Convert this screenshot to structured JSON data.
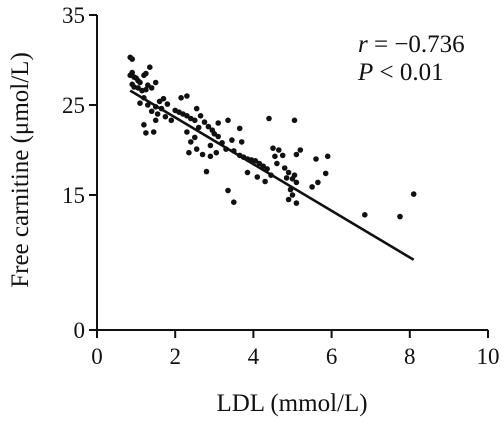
{
  "chart_data": {
    "type": "scatter",
    "xlabel": "LDL (mmol/L)",
    "ylabel": "Free carnitine (μmol/L)",
    "xlim": [
      0,
      10
    ],
    "ylim": [
      0,
      35
    ],
    "x_ticks": [
      0,
      2,
      4,
      6,
      8,
      10
    ],
    "y_ticks": [
      0,
      15,
      25,
      35
    ],
    "x_tick_labels": [
      "0",
      "2",
      "4",
      "6",
      "8",
      "10"
    ],
    "y_tick_labels": [
      "0",
      "15",
      "25",
      "35"
    ],
    "grid": false,
    "annotations": {
      "r_symbol": "r",
      "r_value": " = −0.736",
      "p_symbol": "P",
      "p_value": " < 0.01"
    },
    "trendline": {
      "x": [
        0.85,
        8.1
      ],
      "y": [
        26.6,
        7.8
      ]
    },
    "points": [
      [
        0.85,
        30.3
      ],
      [
        0.9,
        30.1
      ],
      [
        0.9,
        28.6
      ],
      [
        0.85,
        28.3
      ],
      [
        0.95,
        28.1
      ],
      [
        1.0,
        28.0
      ],
      [
        1.05,
        27.7
      ],
      [
        1.1,
        27.5
      ],
      [
        0.9,
        27.3
      ],
      [
        0.95,
        27.0
      ],
      [
        1.05,
        26.9
      ],
      [
        1.15,
        26.6
      ],
      [
        1.25,
        26.7
      ],
      [
        1.3,
        27.2
      ],
      [
        1.2,
        28.3
      ],
      [
        1.35,
        29.2
      ],
      [
        1.25,
        28.5
      ],
      [
        1.5,
        27.5
      ],
      [
        1.4,
        26.9
      ],
      [
        1.2,
        25.8
      ],
      [
        1.1,
        25.2
      ],
      [
        1.3,
        25.0
      ],
      [
        1.5,
        24.8
      ],
      [
        1.6,
        25.4
      ],
      [
        1.7,
        25.7
      ],
      [
        1.8,
        25.1
      ],
      [
        1.65,
        24.6
      ],
      [
        1.4,
        24.3
      ],
      [
        1.55,
        24.0
      ],
      [
        1.75,
        23.7
      ],
      [
        1.5,
        23.3
      ],
      [
        1.9,
        23.3
      ],
      [
        1.2,
        22.8
      ],
      [
        1.45,
        22.0
      ],
      [
        1.25,
        21.9
      ],
      [
        2.0,
        24.4
      ],
      [
        2.1,
        24.2
      ],
      [
        2.2,
        24.0
      ],
      [
        2.3,
        23.8
      ],
      [
        2.4,
        23.5
      ],
      [
        2.5,
        23.3
      ],
      [
        2.3,
        26.0
      ],
      [
        2.15,
        25.8
      ],
      [
        2.55,
        24.6
      ],
      [
        2.65,
        23.8
      ],
      [
        2.75,
        23.1
      ],
      [
        2.85,
        22.6
      ],
      [
        2.95,
        22.2
      ],
      [
        3.0,
        21.8
      ],
      [
        3.1,
        21.5
      ],
      [
        2.6,
        22.5
      ],
      [
        2.5,
        21.4
      ],
      [
        2.3,
        22.0
      ],
      [
        2.4,
        20.9
      ],
      [
        2.55,
        20.1
      ],
      [
        2.35,
        19.7
      ],
      [
        2.7,
        19.5
      ],
      [
        2.9,
        20.5
      ],
      [
        3.2,
        20.8
      ],
      [
        3.3,
        20.1
      ],
      [
        3.05,
        19.7
      ],
      [
        2.9,
        19.3
      ],
      [
        2.8,
        17.6
      ],
      [
        3.35,
        23.3
      ],
      [
        3.1,
        23.0
      ],
      [
        3.45,
        21.1
      ],
      [
        3.5,
        19.9
      ],
      [
        3.65,
        19.4
      ],
      [
        3.75,
        19.2
      ],
      [
        3.85,
        19.0
      ],
      [
        3.95,
        18.9
      ],
      [
        4.05,
        18.8
      ],
      [
        4.15,
        18.5
      ],
      [
        4.25,
        18.2
      ],
      [
        4.35,
        17.9
      ],
      [
        3.65,
        22.4
      ],
      [
        3.7,
        20.9
      ],
      [
        3.85,
        17.5
      ],
      [
        3.35,
        15.5
      ],
      [
        3.5,
        14.2
      ],
      [
        4.1,
        17.0
      ],
      [
        4.3,
        16.5
      ],
      [
        4.45,
        17.2
      ],
      [
        4.55,
        19.3
      ],
      [
        4.4,
        23.5
      ],
      [
        4.5,
        20.2
      ],
      [
        4.65,
        20.0
      ],
      [
        4.75,
        19.4
      ],
      [
        4.6,
        18.5
      ],
      [
        4.8,
        18.0
      ],
      [
        4.9,
        17.5
      ],
      [
        4.85,
        16.9
      ],
      [
        5.0,
        16.8
      ],
      [
        5.05,
        17.2
      ],
      [
        5.1,
        16.4
      ],
      [
        5.05,
        23.3
      ],
      [
        4.95,
        15.6
      ],
      [
        5.0,
        15.0
      ],
      [
        5.1,
        14.1
      ],
      [
        4.9,
        14.5
      ],
      [
        5.2,
        20.0
      ],
      [
        5.1,
        19.5
      ],
      [
        5.6,
        19.0
      ],
      [
        5.9,
        19.3
      ],
      [
        5.85,
        17.4
      ],
      [
        5.65,
        16.4
      ],
      [
        5.5,
        15.9
      ],
      [
        6.85,
        12.8
      ],
      [
        7.75,
        12.6
      ],
      [
        8.1,
        15.1
      ]
    ]
  }
}
